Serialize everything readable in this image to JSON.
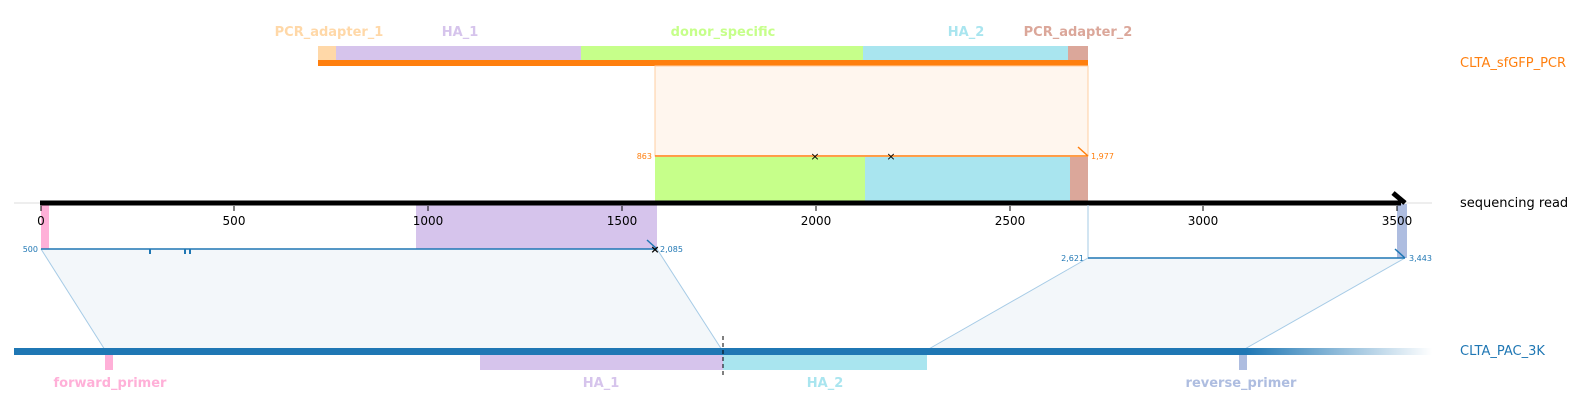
{
  "sequences": {
    "pcr": {
      "name": "CLTA_sfGFP_PCR",
      "color": "#ff7f0e"
    },
    "read": {
      "name": "sequencing read",
      "color": "#000000"
    },
    "ref": {
      "name": "CLTA_PAC_3K",
      "color": "#1f77b4"
    }
  },
  "pcr_features": [
    {
      "label": "PCR_adapter_1",
      "color": "#ffd8a8"
    },
    {
      "label": "HA_1",
      "color": "#d6c4ec"
    },
    {
      "label": "donor_specific",
      "color": "#c6ff8a"
    },
    {
      "label": "HA_2",
      "color": "#a9e5ef"
    },
    {
      "label": "PCR_adapter_2",
      "color": "#dba79a"
    }
  ],
  "ref_features": [
    {
      "label": "forward_primer",
      "color": "#ffb0d8"
    },
    {
      "label": "HA_1",
      "color": "#d6c4ec"
    },
    {
      "label": "HA_2",
      "color": "#a9e5ef"
    },
    {
      "label": "reverse_primer",
      "color": "#aebde0"
    }
  ],
  "read_axis": {
    "ticks": [
      "0",
      "500",
      "1000",
      "1500",
      "2000",
      "2500",
      "3000",
      "3500"
    ]
  },
  "alignments": {
    "pcr": {
      "start_label": "863",
      "end_label": "1,977",
      "color": "#ff7f0e"
    },
    "ref_left": {
      "start_label": "500",
      "end_label": "2,085",
      "color": "#1f77b4"
    },
    "ref_right": {
      "start_label": "2,621",
      "end_label": "3,443",
      "color": "#1f77b4"
    }
  }
}
